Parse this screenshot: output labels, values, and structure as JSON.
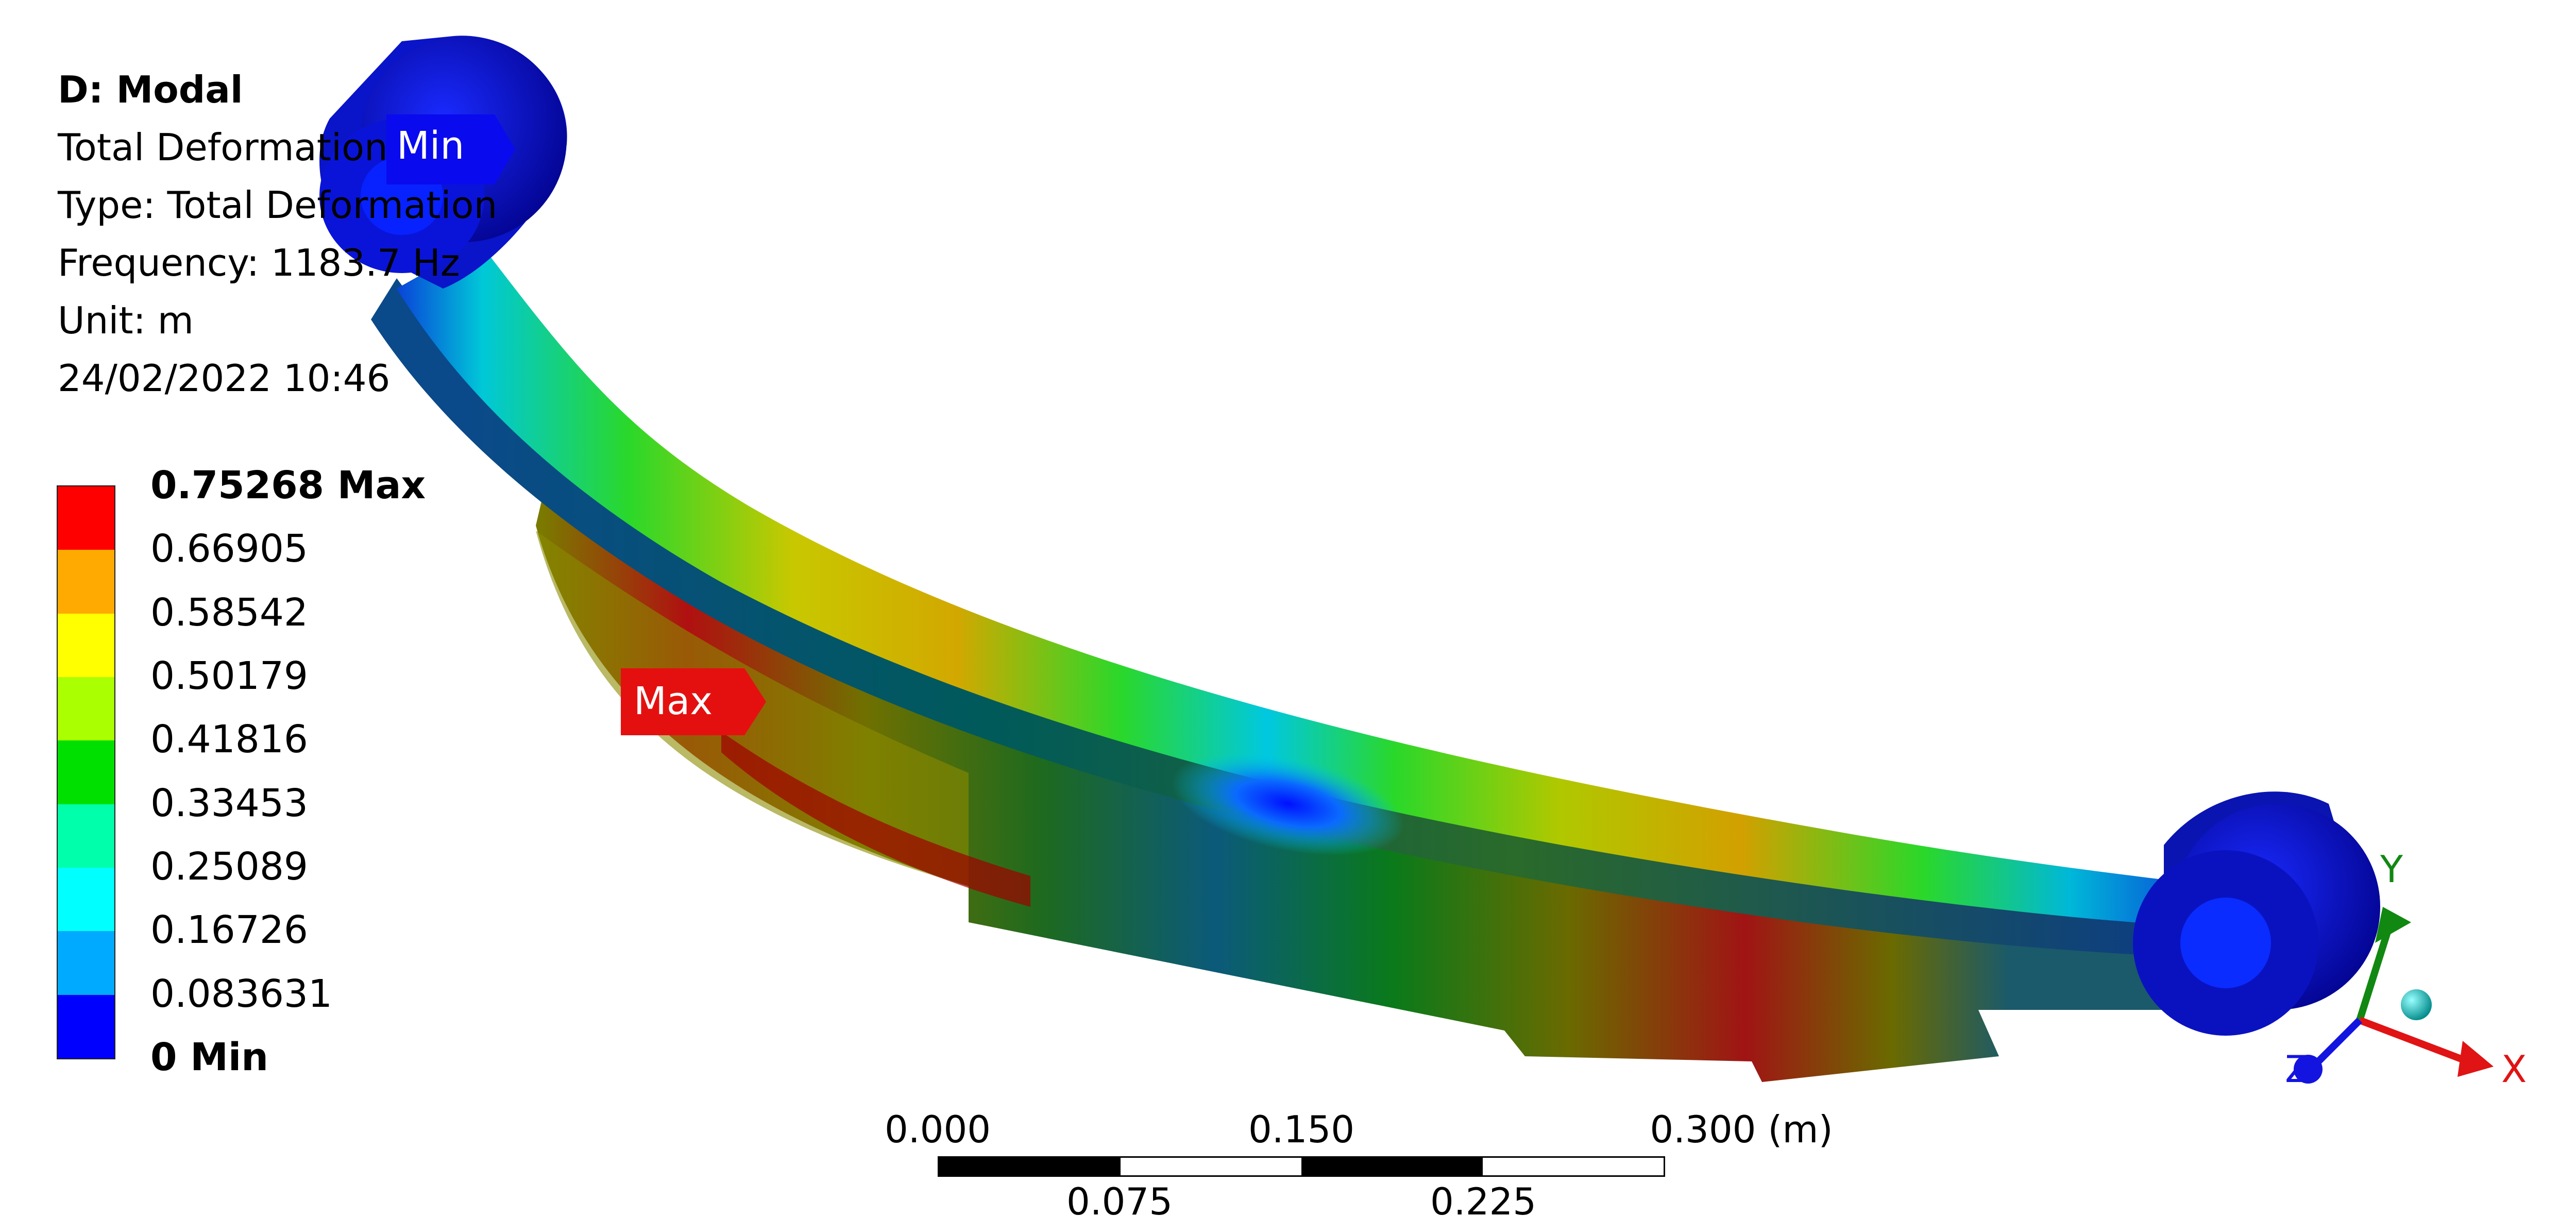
{
  "info": {
    "title": "D: Modal",
    "result": "Total Deformation",
    "type": "Type: Total Deformation",
    "frequency": "Frequency: 1183.7 Hz",
    "unit": "Unit: m",
    "timestamp": "24/02/2022 10:46"
  },
  "legend": {
    "labels": [
      "0.75268 Max",
      "0.66905",
      "0.58542",
      "0.50179",
      "0.41816",
      "0.33453",
      "0.25089",
      "0.16726",
      "0.083631",
      "0 Min"
    ],
    "colors": [
      "#ff0000",
      "#ffaa00",
      "#ffff00",
      "#aaff00",
      "#00e000",
      "#00ffaa",
      "#00ffff",
      "#00aaff",
      "#0000ff"
    ]
  },
  "probes": {
    "min_label": "Min",
    "max_label": "Max",
    "min_color": "#0a0aee",
    "max_color": "#e41010"
  },
  "scale": {
    "top_labels": [
      "0.000",
      "0.150",
      "0.300 (m)"
    ],
    "bottom_labels": [
      "0.075",
      "0.225"
    ]
  },
  "triad": {
    "x_label": "X",
    "y_label": "Y",
    "z_label": "Z",
    "x_color": "#e01414",
    "y_color": "#118811",
    "z_color": "#1414e0"
  }
}
